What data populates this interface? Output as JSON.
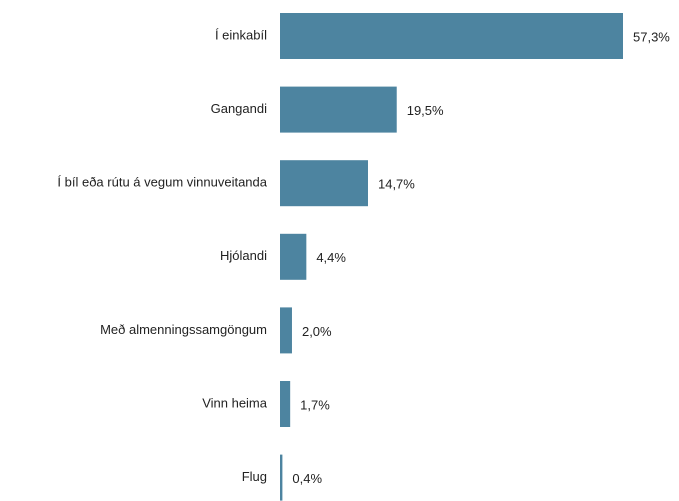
{
  "chart_data": {
    "type": "bar",
    "orientation": "horizontal",
    "categories": [
      "Í einkabíl",
      "Gangandi",
      "Í bíl eða rútu á vegum vinnuveitanda",
      "Hjólandi",
      "Með almenningssamgöngum",
      "Vinn heima",
      "Flug"
    ],
    "values": [
      57.3,
      19.5,
      14.7,
      4.4,
      2.0,
      1.7,
      0.4
    ],
    "value_labels": [
      "57,3%",
      "19,5%",
      "14,7%",
      "4,4%",
      "2,0%",
      "1,7%",
      "0,4%"
    ],
    "color": "#4d84a0"
  }
}
